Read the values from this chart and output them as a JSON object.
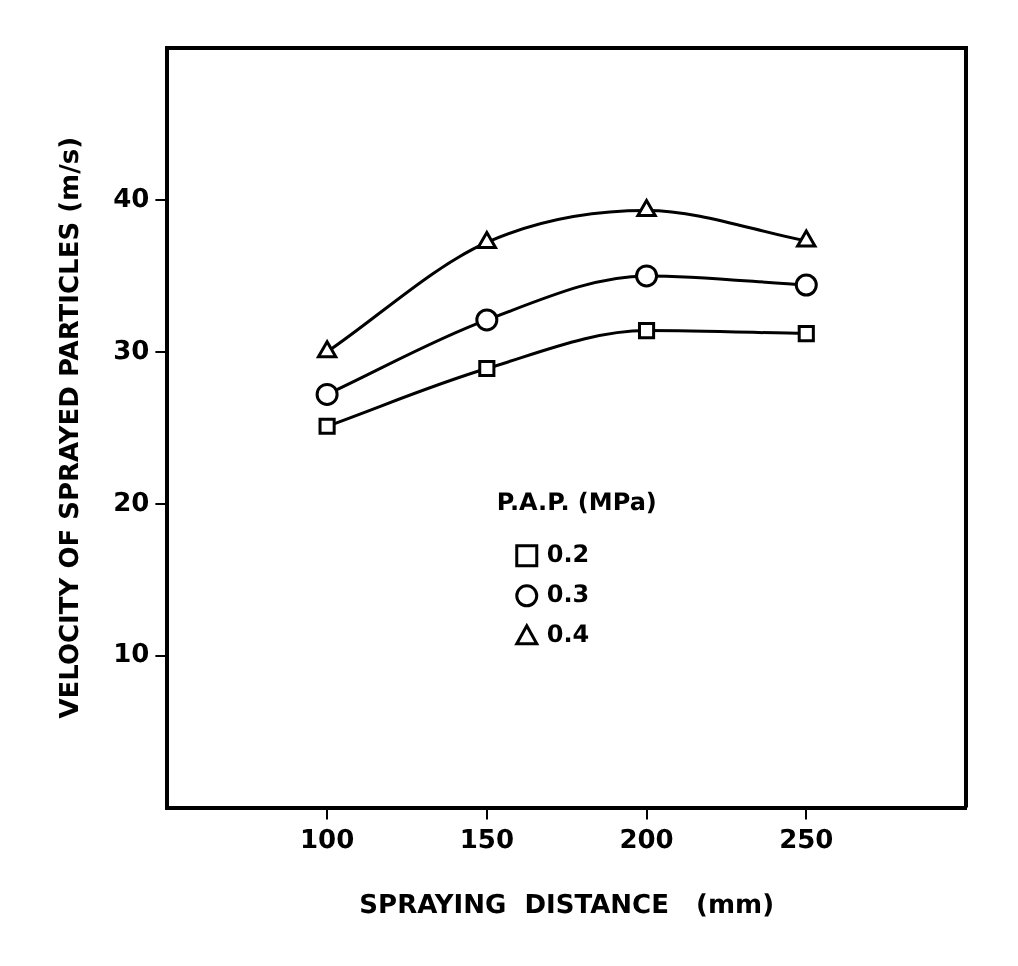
{
  "chart_data": {
    "type": "line",
    "xlabel": "SPRAYING  DISTANCE   (mm)",
    "ylabel": "VELOCITY OF SPRAYED PARTICLES (m/s)",
    "legend_title": "P.A.P. (MPa)",
    "legend": "center",
    "grid": false,
    "x": [
      100,
      150,
      200,
      250
    ],
    "xlim": [
      50,
      300
    ],
    "xticks": [
      100,
      150,
      200,
      250
    ],
    "ylim": [
      0,
      50
    ],
    "yticks": [
      10,
      20,
      30,
      40
    ],
    "series": [
      {
        "name": "0.2",
        "color": "#000000",
        "marker": "square",
        "values": [
          25.1,
          28.9,
          31.4,
          31.2
        ]
      },
      {
        "name": "0.3",
        "color": "#000000",
        "marker": "circle",
        "values": [
          27.2,
          32.1,
          35.0,
          34.4
        ]
      },
      {
        "name": "0.4",
        "color": "#000000",
        "marker": "triangle",
        "values": [
          30.0,
          37.2,
          39.3,
          37.3
        ]
      }
    ]
  }
}
